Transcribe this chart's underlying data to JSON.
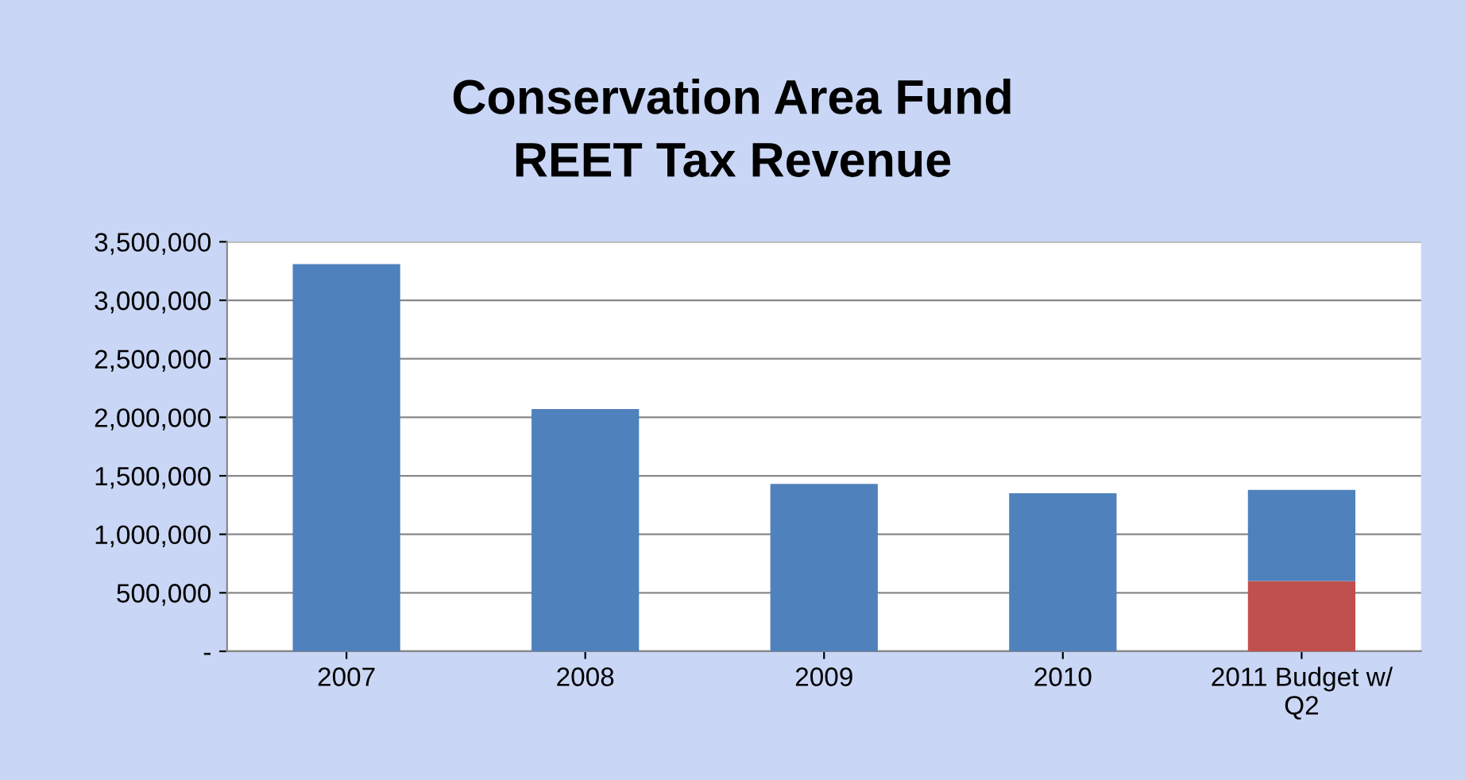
{
  "chart_data": {
    "type": "bar",
    "title": "Conservation Area Fund\nREET Tax Revenue",
    "categories": [
      "2007",
      "2008",
      "2009",
      "2010",
      "2011 Budget w/\nQ2"
    ],
    "stacked": true,
    "series": [
      {
        "color": "#c0504d",
        "values": [
          null,
          null,
          null,
          null,
          600000
        ]
      },
      {
        "color": "#4f81bd",
        "values": [
          3310000,
          2070000,
          1430000,
          1350000,
          780000
        ]
      }
    ],
    "ylim": [
      0,
      3500000
    ],
    "yticks": [
      {
        "value": 0,
        "label": "-"
      },
      {
        "value": 500000,
        "label": "500,000"
      },
      {
        "value": 1000000,
        "label": "1,000,000"
      },
      {
        "value": 1500000,
        "label": "1,500,000"
      },
      {
        "value": 2000000,
        "label": "2,000,000"
      },
      {
        "value": 2500000,
        "label": "2,500,000"
      },
      {
        "value": 3000000,
        "label": "3,000,000"
      },
      {
        "value": 3500000,
        "label": "3,500,000"
      }
    ],
    "grid": "y",
    "legend": false
  }
}
